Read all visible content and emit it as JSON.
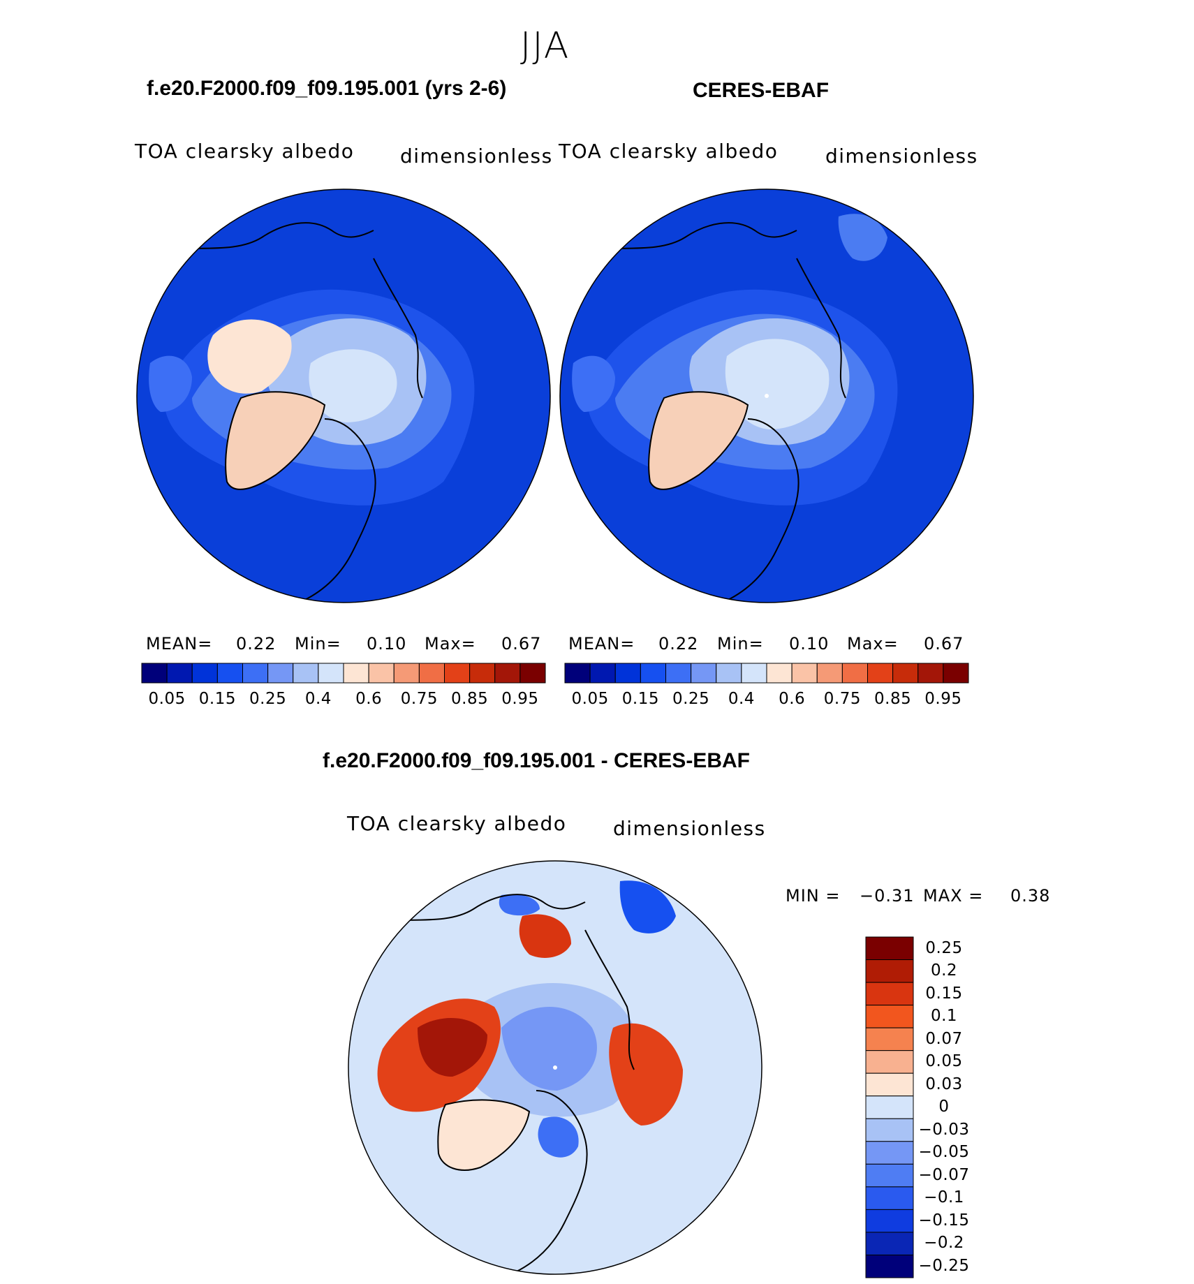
{
  "season": "JJA",
  "panels": [
    {
      "title": "f.e20.F2000.f09_f09.195.001 (yrs 2-6)",
      "variable": "TOA clearsky albedo",
      "units": "dimensionless",
      "stats": {
        "mean_label": "MEAN=",
        "mean": "0.22",
        "min_label": "Min=",
        "min": "0.10",
        "max_label": "Max=",
        "max": "0.67"
      }
    },
    {
      "title": "CERES-EBAF",
      "variable": "TOA clearsky albedo",
      "units": "dimensionless",
      "stats": {
        "mean_label": "MEAN=",
        "mean": "0.22",
        "min_label": "Min=",
        "min": "0.10",
        "max_label": "Max=",
        "max": "0.67"
      }
    }
  ],
  "diff_panel": {
    "title": "f.e20.F2000.f09_f09.195.001 - CERES-EBAF",
    "variable": "TOA clearsky albedo",
    "units": "dimensionless",
    "stats": {
      "min_label": "MIN =",
      "min": "−0.31",
      "max_label": "MAX =",
      "max": "0.38"
    }
  },
  "chart_data": [
    {
      "type": "heatmap",
      "projection": "north polar stereographic",
      "title": "f.e20.F2000.f09_f09.195.001 (yrs 2-6)",
      "field": "TOA clearsky albedo",
      "units": "dimensionless",
      "colorbar": {
        "tick_labels": [
          "0.05",
          "0.15",
          "0.25",
          "0.4",
          "0.6",
          "0.75",
          "0.85",
          "0.95"
        ],
        "colors": [
          "#00007a",
          "#0018b0",
          "#0033d9",
          "#1650f0",
          "#3d6ff5",
          "#7597f5",
          "#a8c2f5",
          "#d4e4fa",
          "#fde5d4",
          "#fac3a7",
          "#f59a76",
          "#f06e45",
          "#e34118",
          "#c72c0a",
          "#a31608",
          "#7a0000"
        ]
      },
      "mean": 0.22,
      "min": 0.1,
      "max": 0.67
    },
    {
      "type": "heatmap",
      "projection": "north polar stereographic",
      "title": "CERES-EBAF",
      "field": "TOA clearsky albedo",
      "units": "dimensionless",
      "colorbar": {
        "tick_labels": [
          "0.05",
          "0.15",
          "0.25",
          "0.4",
          "0.6",
          "0.75",
          "0.85",
          "0.95"
        ],
        "colors": [
          "#00007a",
          "#0018b0",
          "#0033d9",
          "#1650f0",
          "#3d6ff5",
          "#7597f5",
          "#a8c2f5",
          "#d4e4fa",
          "#fde5d4",
          "#fac3a7",
          "#f59a76",
          "#f06e45",
          "#e34118",
          "#c72c0a",
          "#a31608",
          "#7a0000"
        ]
      },
      "mean": 0.22,
      "min": 0.1,
      "max": 0.67
    },
    {
      "type": "heatmap",
      "projection": "north polar stereographic",
      "title": "f.e20.F2000.f09_f09.195.001 - CERES-EBAF",
      "field": "TOA clearsky albedo",
      "units": "dimensionless",
      "colorbar": {
        "tick_labels": [
          "0.25",
          "0.2",
          "0.15",
          "0.1",
          "0.07",
          "0.05",
          "0.03",
          "0",
          "−0.03",
          "−0.05",
          "−0.07",
          "−0.1",
          "−0.15",
          "−0.2",
          "−0.25"
        ],
        "colors": [
          "#7a0000",
          "#b01c05",
          "#d93510",
          "#f2561e",
          "#f5824f",
          "#f8b190",
          "#fde5d4",
          "#d4e4fa",
          "#a8c2f5",
          "#7597f5",
          "#4f7df3",
          "#2a5aef",
          "#0f3ce0",
          "#0a26b5",
          "#00007a"
        ]
      },
      "min": -0.31,
      "max": 0.38
    }
  ]
}
